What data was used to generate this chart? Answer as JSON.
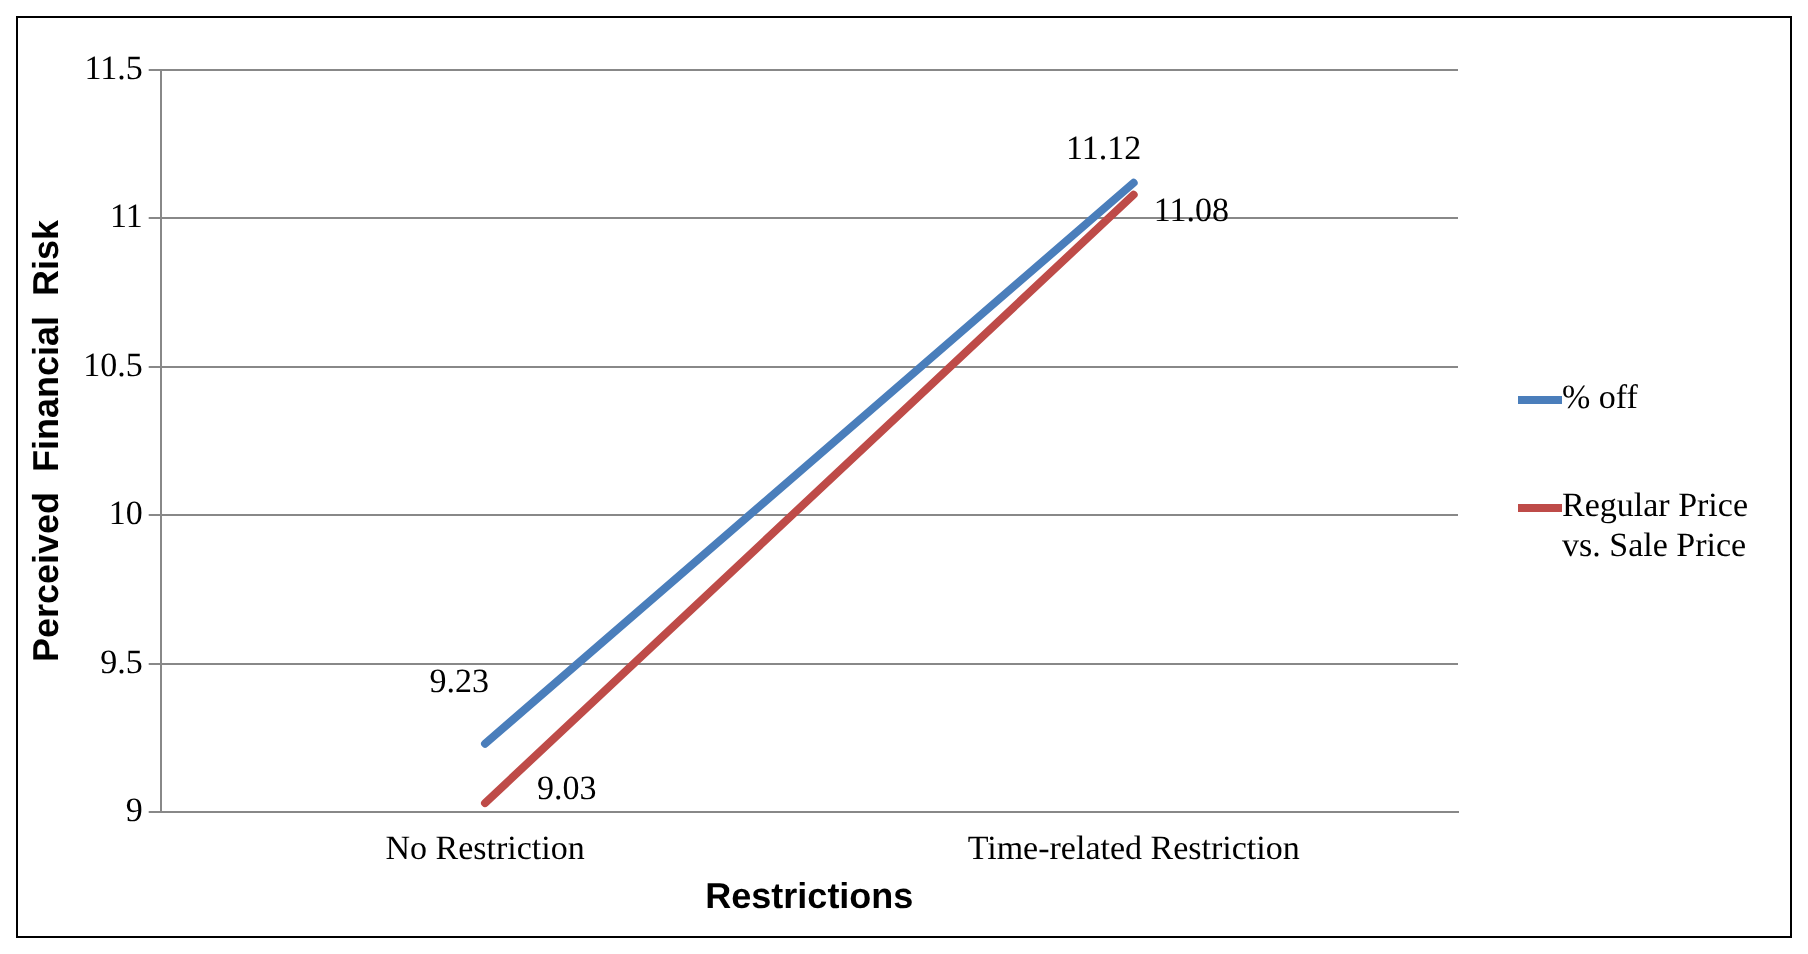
{
  "chart_data": {
    "type": "line",
    "xlabel": "Restrictions",
    "ylabel": "Perceived  Financial  Risk",
    "categories": [
      "No Restriction",
      "Time-related Restriction"
    ],
    "series": [
      {
        "name": "% off",
        "color": "#4a7ebb",
        "values": [
          9.23,
          11.12
        ]
      },
      {
        "name": "Regular Price vs. Sale Price",
        "color": "#be4b48",
        "values": [
          9.03,
          11.08
        ]
      }
    ],
    "ylim": [
      9,
      11.5
    ],
    "yticks": [
      9,
      9.5,
      10,
      10.5,
      11,
      11.5
    ],
    "grid": "y",
    "legend": "right",
    "data_labels": true,
    "marker": "none",
    "line_style": "solid"
  }
}
